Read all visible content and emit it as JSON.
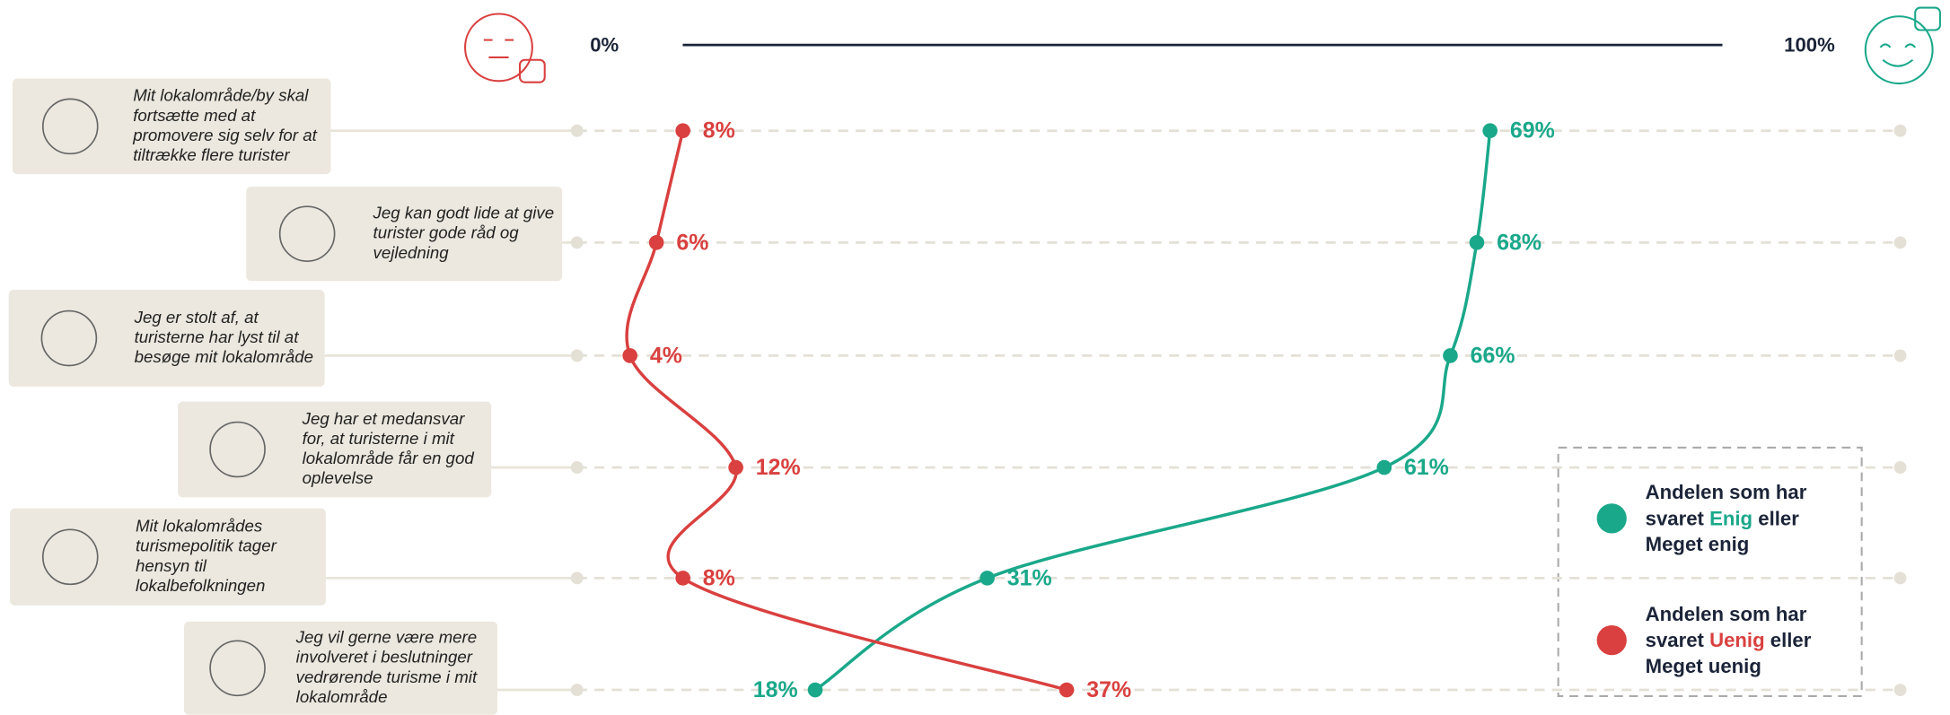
{
  "chart_data": {
    "type": "line",
    "categories": [
      "Mit lokalområde/by skal fortsætte med at promovere sig selv for at tiltrække flere turister",
      "Jeg kan godt lide at give turister gode råd og vejledning",
      "Jeg er stolt af, at turisterne har lyst til at besøge mit lokalområde",
      "Jeg har et medansvar for, at turisterne i mit lokalområde får en god oplevelse",
      "Mit lokalområdes turismepolitik tager hensyn til lokalbefolkningen",
      "Jeg vil gerne være mere involveret i beslutninger vedrørende turisme i mit lokalområde"
    ],
    "series": [
      {
        "name_parts": [
          "Enig",
          "eller",
          "Meget enig"
        ],
        "color": "#1aa88a",
        "values": [
          69,
          68,
          66,
          61,
          31,
          18
        ],
        "value_labels": [
          "69%",
          "68%",
          "66%",
          "61%",
          "31%",
          "18%"
        ]
      },
      {
        "name_parts": [
          "Uenig",
          "eller",
          "Meget uenig"
        ],
        "color": "#d9403f",
        "values": [
          8,
          6,
          4,
          12,
          8,
          37
        ],
        "value_labels": [
          "8%",
          "6%",
          "4%",
          "12%",
          "8%",
          "37%"
        ]
      }
    ],
    "legend_prefix": [
      "Andelen som har",
      "svaret"
    ],
    "xlim": [
      0,
      100
    ],
    "xticks": [
      {
        "value": 0,
        "label": "0%"
      },
      {
        "value": 100,
        "label": "100%"
      }
    ]
  }
}
